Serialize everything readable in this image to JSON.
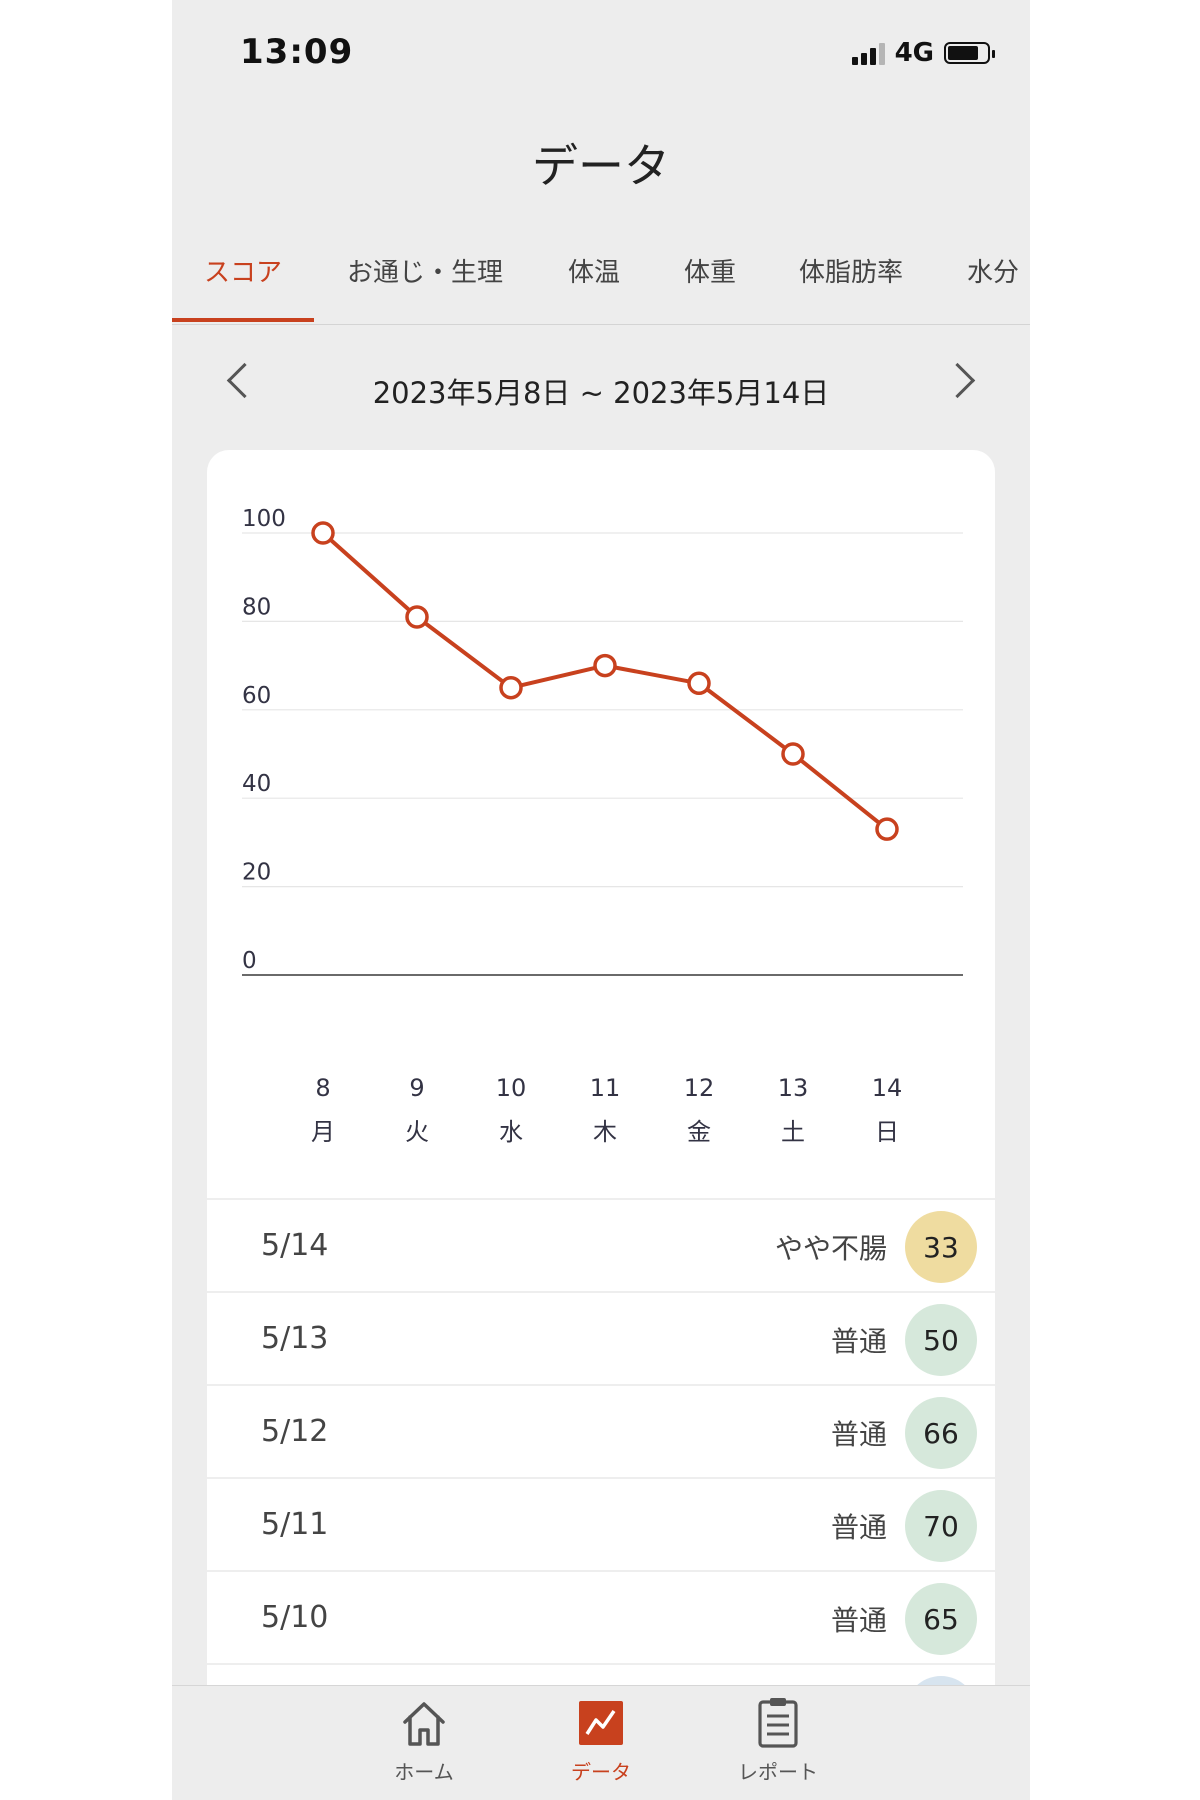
{
  "status_bar": {
    "time": "13:09",
    "network": "4G"
  },
  "header": {
    "title": "データ"
  },
  "tabs": [
    {
      "label": "スコア",
      "active": true
    },
    {
      "label": "お通じ・生理",
      "active": false
    },
    {
      "label": "体温",
      "active": false
    },
    {
      "label": "体重",
      "active": false
    },
    {
      "label": "体脂肪率",
      "active": false
    },
    {
      "label": "水分",
      "active": false
    }
  ],
  "date_range": "2023年5月8日 ~ 2023年5月14日",
  "chart_data": {
    "type": "line",
    "x": [
      "8",
      "9",
      "10",
      "11",
      "12",
      "13",
      "14"
    ],
    "weekdays": [
      "月",
      "火",
      "水",
      "木",
      "金",
      "土",
      "日"
    ],
    "series": [
      {
        "values": [
          100,
          81,
          65,
          70,
          66,
          50,
          33
        ]
      }
    ],
    "yticks": [
      0,
      20,
      40,
      60,
      80,
      100
    ],
    "ylim": [
      0,
      100
    ],
    "grid": true,
    "line_color": "#c8411e"
  },
  "score_list": [
    {
      "date": "5/14",
      "status": "やや不腸",
      "score": "33",
      "badge_color": "#efdca0"
    },
    {
      "date": "5/13",
      "status": "普通",
      "score": "50",
      "badge_color": "#d6e8db"
    },
    {
      "date": "5/12",
      "status": "普通",
      "score": "66",
      "badge_color": "#d6e8db"
    },
    {
      "date": "5/11",
      "status": "普通",
      "score": "70",
      "badge_color": "#d6e8db"
    },
    {
      "date": "5/10",
      "status": "普通",
      "score": "65",
      "badge_color": "#d6e8db"
    }
  ],
  "bottom_nav": [
    {
      "label": "ホーム",
      "icon": "home-icon",
      "active": false
    },
    {
      "label": "データ",
      "icon": "chart-icon",
      "active": true
    },
    {
      "label": "レポート",
      "icon": "clipboard-icon",
      "active": false
    }
  ]
}
